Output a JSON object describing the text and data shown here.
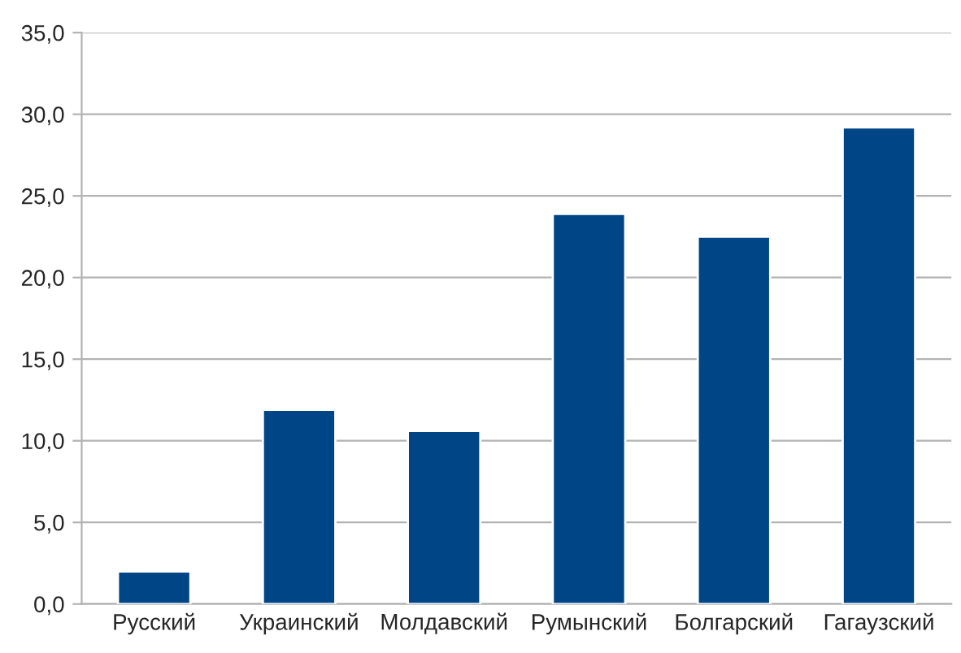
{
  "chart_data": {
    "type": "bar",
    "categories": [
      "Русский",
      "Украинский",
      "Молдавский",
      "Румынский",
      "Болгарский",
      "Гагаузский"
    ],
    "values": [
      2.0,
      11.9,
      10.6,
      23.9,
      22.5,
      29.2
    ],
    "color": "#004586",
    "ylim": [
      0,
      35
    ],
    "yticks": [
      {
        "value": 0,
        "label": "0,0"
      },
      {
        "value": 5,
        "label": "5,0"
      },
      {
        "value": 10,
        "label": "10,0"
      },
      {
        "value": 15,
        "label": "15,0"
      },
      {
        "value": 20,
        "label": "20,0"
      },
      {
        "value": 25,
        "label": "25,0"
      },
      {
        "value": 30,
        "label": "30,0"
      },
      {
        "value": 35,
        "label": "35,0"
      }
    ],
    "grid": "y",
    "legend": false
  }
}
